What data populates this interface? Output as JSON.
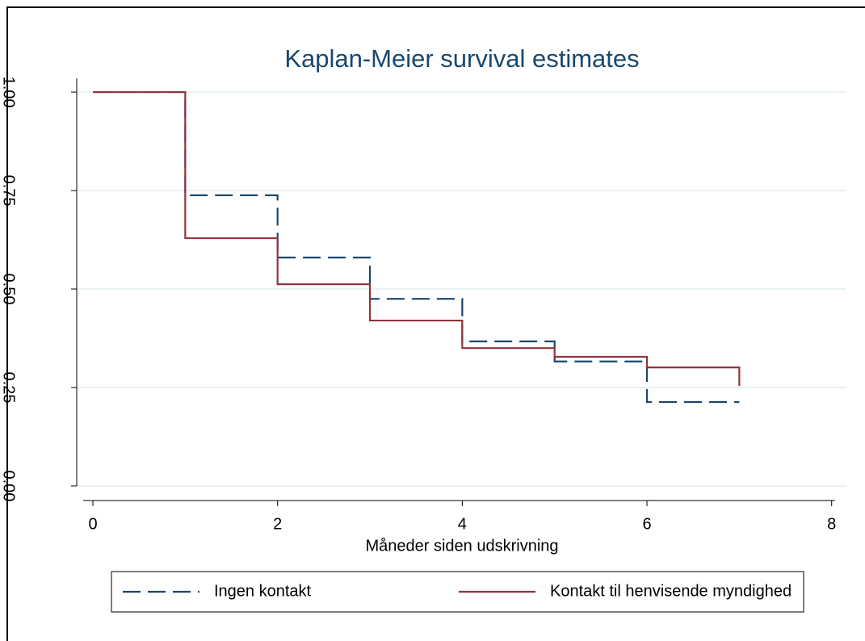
{
  "chart_data": {
    "type": "step",
    "title": "Kaplan-Meier survival estimates",
    "x_label": "Måneder siden udskrivning",
    "x": [
      0,
      1,
      2,
      3,
      4,
      5,
      6,
      7
    ],
    "series": [
      {
        "name": "Ingen kontakt",
        "color": "#1a476f",
        "dashed": true,
        "values": [
          1.0,
          0.738,
          0.58,
          0.475,
          0.367,
          0.316,
          0.213,
          0.213
        ]
      },
      {
        "name": "Kontakt til henvisende myndighed",
        "color": "#90353b",
        "dashed": false,
        "values": [
          1.0,
          0.629,
          0.512,
          0.42,
          0.35,
          0.328,
          0.301,
          0.254
        ]
      }
    ],
    "xlim": [
      -0.175,
      8.16
    ],
    "ylim": [
      -0.037,
      1.035
    ],
    "xticks": [
      0,
      2,
      4,
      6,
      8
    ],
    "yticks": [
      {
        "value": 0,
        "label": "0.00"
      },
      {
        "value": 0.25,
        "label": "0.25"
      },
      {
        "value": 0.5,
        "label": "0.50"
      },
      {
        "value": 0.75,
        "label": "0.75"
      },
      {
        "value": 1,
        "label": "1.00"
      }
    ],
    "grid": true
  }
}
